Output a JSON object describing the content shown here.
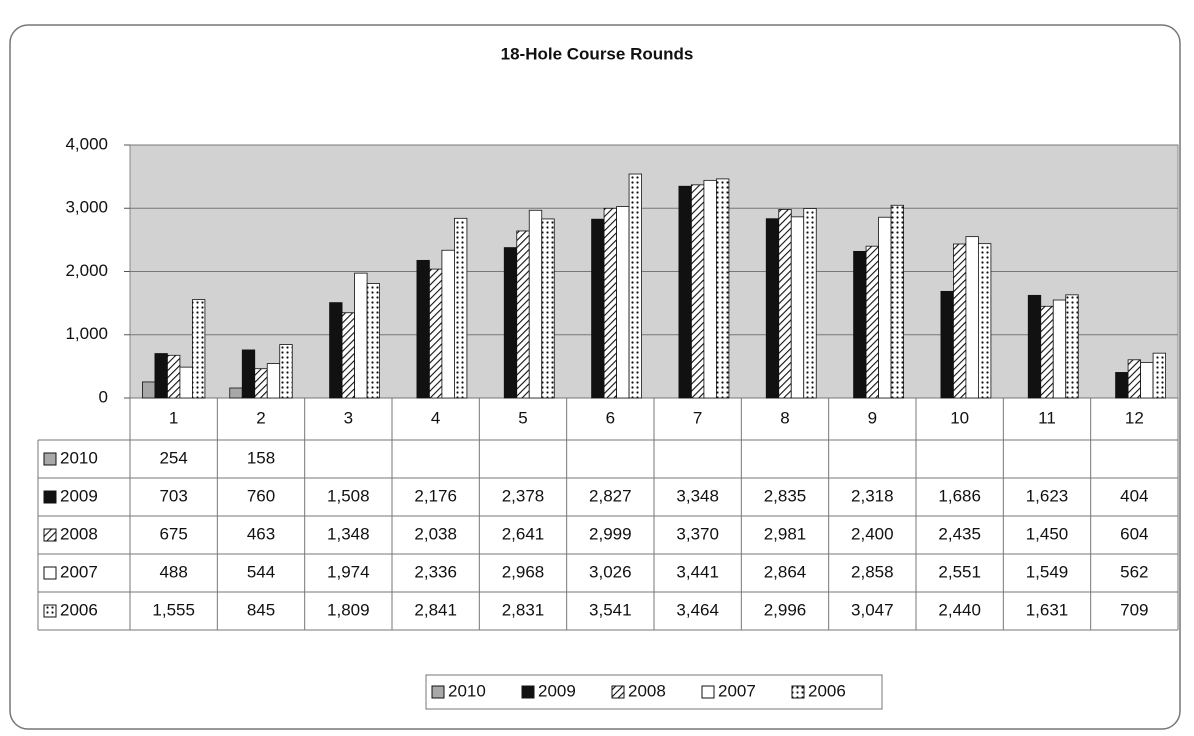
{
  "chart_data": {
    "type": "bar",
    "title": "18-Hole Course Rounds",
    "categories": [
      "1",
      "2",
      "3",
      "4",
      "5",
      "6",
      "7",
      "8",
      "9",
      "10",
      "11",
      "12"
    ],
    "ylim": [
      0,
      4000
    ],
    "yticks": [
      0,
      {
        "value": 1000,
        "label": "1,000"
      },
      {
        "value": 2000,
        "label": "2,000"
      },
      {
        "value": 3000,
        "label": "3,000"
      },
      {
        "value": 4000,
        "label": "4,000"
      }
    ],
    "grid": true,
    "series": [
      {
        "name": "2010",
        "color": "#a8a8a8",
        "values": [
          254,
          158,
          null,
          null,
          null,
          null,
          null,
          null,
          null,
          null,
          null,
          null
        ],
        "value_labels": [
          "254",
          "158",
          null,
          null,
          null,
          null,
          null,
          null,
          null,
          null,
          null,
          null
        ]
      },
      {
        "name": "2009",
        "color": "#111111",
        "values": [
          703,
          760,
          1508,
          2176,
          2378,
          2827,
          3348,
          2835,
          2318,
          1686,
          1623,
          404
        ],
        "value_labels": [
          "703",
          "760",
          "1,508",
          "2,176",
          "2,378",
          "2,827",
          "3,348",
          "2,835",
          "2,318",
          "1,686",
          "1,623",
          "404"
        ]
      },
      {
        "name": "2008",
        "color": "#ffffff",
        "pattern": "hatch",
        "values": [
          675,
          463,
          1348,
          2038,
          2641,
          2999,
          3370,
          2981,
          2400,
          2435,
          1450,
          604
        ],
        "value_labels": [
          "675",
          "463",
          "1,348",
          "2,038",
          "2,641",
          "2,999",
          "3,370",
          "2,981",
          "2,400",
          "2,435",
          "1,450",
          "604"
        ]
      },
      {
        "name": "2007",
        "color": "#ffffff",
        "values": [
          488,
          544,
          1974,
          2336,
          2968,
          3026,
          3441,
          2864,
          2858,
          2551,
          1549,
          562
        ],
        "value_labels": [
          "488",
          "544",
          "1,974",
          "2,336",
          "2,968",
          "3,026",
          "3,441",
          "2,864",
          "2,858",
          "2,551",
          "1,549",
          "562"
        ]
      },
      {
        "name": "2006",
        "color": "#ffffff",
        "pattern": "dots",
        "values": [
          1555,
          845,
          1809,
          2841,
          2831,
          3541,
          3464,
          2996,
          3047,
          2440,
          1631,
          709
        ],
        "value_labels": [
          "1,555",
          "845",
          "1,809",
          "2,841",
          "2,831",
          "3,541",
          "3,464",
          "2,996",
          "3,047",
          "2,440",
          "1,631",
          "709"
        ]
      }
    ]
  }
}
